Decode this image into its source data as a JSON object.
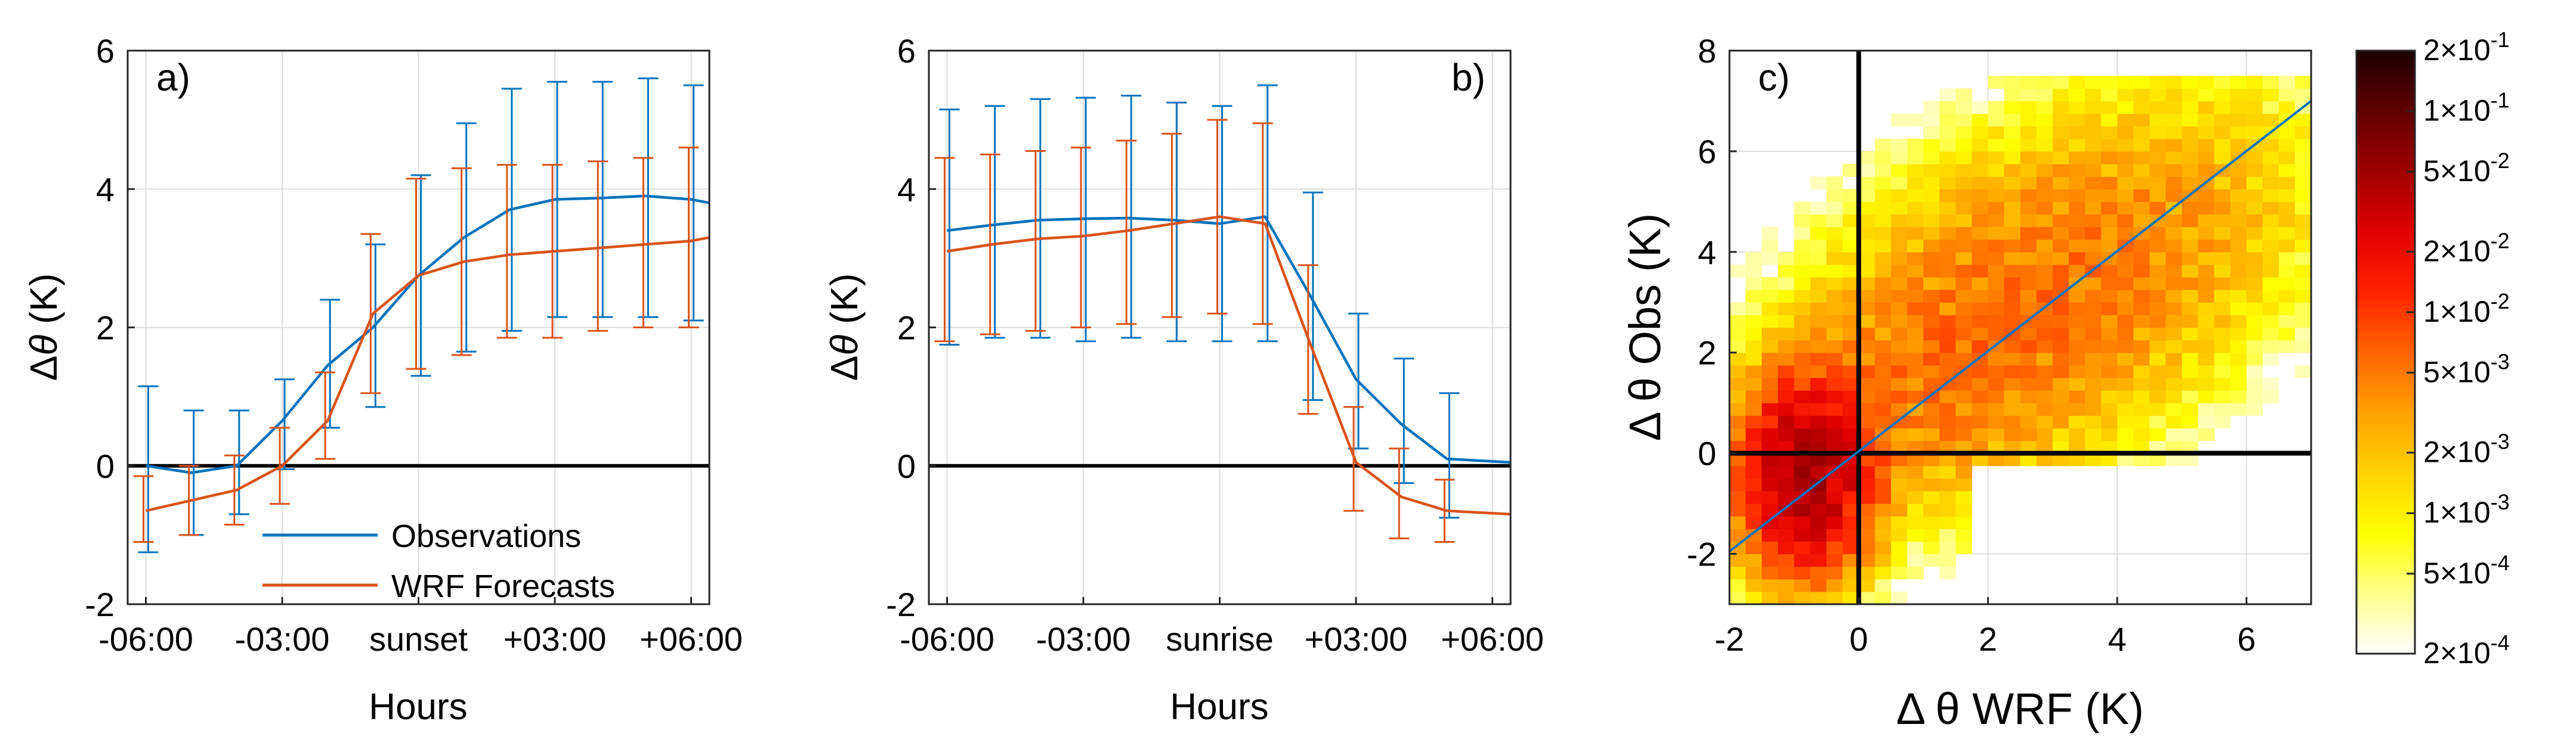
{
  "colors": {
    "observations": "#0072BD",
    "wrf": "#D95319",
    "grid": "#DCDCDC",
    "axis": "#262626",
    "zero_line": "#000000"
  },
  "chart_data": [
    {
      "id": "a",
      "type": "line",
      "panel_label": "a)",
      "xlabel": "Hours",
      "ylabel_prefix": "Δ",
      "ylabel_symbol": "θ",
      "ylabel_unit": " (K)",
      "xlim": [
        -6.4,
        6.4
      ],
      "ylim": [
        -2,
        6
      ],
      "xticks": [
        -6,
        -3,
        0,
        3,
        6
      ],
      "xtick_labels": [
        "-06:00",
        "-03:00",
        "sunset",
        "+03:00",
        "+06:00"
      ],
      "yticks": [
        -2,
        0,
        2,
        4,
        6
      ],
      "ytick_labels": [
        "-2",
        "0",
        "2",
        "4",
        "6"
      ],
      "x": [
        -6,
        -5,
        -4,
        -3,
        -2,
        -1,
        0,
        1,
        2,
        3,
        4,
        5,
        6,
        6.4
      ],
      "legend": {
        "position": "bottom-left",
        "entries": [
          "Observations",
          "WRF Forecasts"
        ]
      },
      "series": [
        {
          "name": "Observations",
          "color": "#0072BD",
          "values": [
            0.0,
            -0.1,
            0.0,
            0.65,
            1.45,
            2.0,
            2.75,
            3.3,
            3.7,
            3.85,
            3.87,
            3.9,
            3.85,
            3.8
          ],
          "error_low": [
            -1.25,
            -1.0,
            -0.7,
            -0.05,
            0.55,
            0.85,
            1.3,
            1.65,
            1.95,
            2.15,
            2.15,
            2.15,
            2.1,
            null
          ],
          "error_high": [
            1.15,
            0.8,
            0.8,
            1.25,
            2.4,
            3.2,
            4.2,
            4.95,
            5.45,
            5.55,
            5.55,
            5.6,
            5.5,
            null
          ]
        },
        {
          "name": "WRF Forecasts",
          "color": "#D95319",
          "values": [
            -0.65,
            -0.5,
            -0.35,
            0.0,
            0.65,
            2.2,
            2.75,
            2.95,
            3.05,
            3.1,
            3.15,
            3.2,
            3.25,
            3.3
          ],
          "error_low": [
            -1.1,
            -1.0,
            -0.85,
            -0.55,
            0.1,
            1.05,
            1.4,
            1.6,
            1.85,
            1.85,
            1.95,
            2.0,
            2.0,
            null
          ],
          "error_high": [
            -0.15,
            0.0,
            0.15,
            0.55,
            1.35,
            3.35,
            4.15,
            4.3,
            4.35,
            4.35,
            4.4,
            4.45,
            4.6,
            null
          ]
        }
      ]
    },
    {
      "id": "b",
      "type": "line",
      "panel_label": "b)",
      "xlabel": "Hours",
      "ylabel_prefix": "Δ",
      "ylabel_symbol": "θ",
      "ylabel_unit": " (K)",
      "xlim": [
        -6.4,
        6.4
      ],
      "ylim": [
        -2,
        6
      ],
      "xticks": [
        -6,
        -3,
        0,
        3,
        6
      ],
      "xtick_labels": [
        "-06:00",
        "-03:00",
        "sunrise",
        "+03:00",
        "+06:00"
      ],
      "yticks": [
        -2,
        0,
        2,
        4,
        6
      ],
      "ytick_labels": [
        "-2",
        "0",
        "2",
        "4",
        "6"
      ],
      "x": [
        -6,
        -5,
        -4,
        -3,
        -2,
        -1,
        0,
        1,
        2,
        3,
        4,
        5,
        6.4
      ],
      "series": [
        {
          "name": "Observations",
          "color": "#0072BD",
          "values": [
            3.4,
            3.48,
            3.55,
            3.57,
            3.58,
            3.55,
            3.5,
            3.6,
            2.45,
            1.25,
            0.6,
            0.1,
            0.05
          ],
          "error_low": [
            1.75,
            1.85,
            1.85,
            1.8,
            1.85,
            1.8,
            1.8,
            1.8,
            0.95,
            0.25,
            -0.25,
            -0.75,
            null
          ],
          "error_high": [
            5.15,
            5.2,
            5.3,
            5.32,
            5.35,
            5.25,
            5.2,
            5.5,
            3.95,
            2.2,
            1.55,
            1.05,
            null
          ]
        },
        {
          "name": "WRF Forecasts",
          "color": "#D95319",
          "values": [
            3.1,
            3.2,
            3.28,
            3.32,
            3.4,
            3.5,
            3.6,
            3.5,
            1.75,
            0.05,
            -0.45,
            -0.65,
            -0.7
          ],
          "error_low": [
            1.8,
            1.9,
            1.95,
            2.0,
            2.05,
            2.15,
            2.2,
            2.05,
            0.75,
            -0.65,
            -1.05,
            -1.1,
            null
          ],
          "error_high": [
            4.45,
            4.5,
            4.55,
            4.6,
            4.7,
            4.8,
            5.0,
            4.95,
            2.9,
            0.85,
            0.25,
            -0.2,
            null
          ]
        }
      ]
    },
    {
      "id": "c",
      "type": "heatmap",
      "panel_label": "c)",
      "xlabel": "Δ θ WRF (K)",
      "ylabel": "Δ θ Obs (K)",
      "xlim": [
        -2,
        7
      ],
      "ylim": [
        -3,
        8
      ],
      "xticks": [
        -2,
        0,
        2,
        4,
        6
      ],
      "xtick_labels": [
        "-2",
        "0",
        "2",
        "4",
        "6"
      ],
      "yticks": [
        -2,
        0,
        2,
        4,
        6,
        8
      ],
      "ytick_labels": [
        "-2",
        "0",
        "2",
        "4",
        "6",
        "8"
      ],
      "fit_line": {
        "color": "#0072BD",
        "points": [
          [
            -2,
            -1.95
          ],
          [
            7,
            7.0
          ]
        ]
      },
      "zero_lines": {
        "x": 0,
        "y": 0,
        "color": "#000000"
      },
      "bin_size": 0.25,
      "density_note": "2D histogram of ΔθObs vs ΔθWRF; densest near (-0.8, -0.5) with a broad cloud centred around (3.2, 3.5)",
      "colorbar": {
        "scale": "log",
        "range": [
          0.0002,
          0.2
        ],
        "colormap": [
          "#ffffff",
          "#ffff8c",
          "#ffff00",
          "#ffd200",
          "#ffa000",
          "#ff6400",
          "#ff2200",
          "#e00000",
          "#a00000",
          "#600000",
          "#1e0000"
        ],
        "ticks": [
          {
            "value": 0.2,
            "mantissa": "2",
            "exponent": "-1"
          },
          {
            "value": 0.1,
            "mantissa": "1",
            "exponent": "-1"
          },
          {
            "value": 0.05,
            "mantissa": "5",
            "exponent": "-2"
          },
          {
            "value": 0.02,
            "mantissa": "2",
            "exponent": "-2"
          },
          {
            "value": 0.01,
            "mantissa": "1",
            "exponent": "-2"
          },
          {
            "value": 0.005,
            "mantissa": "5",
            "exponent": "-3"
          },
          {
            "value": 0.002,
            "mantissa": "2",
            "exponent": "-3"
          },
          {
            "value": 0.001,
            "mantissa": "1",
            "exponent": "-3"
          },
          {
            "value": 0.0005,
            "mantissa": "5",
            "exponent": "-4"
          },
          {
            "value": 0.0002,
            "mantissa": "2",
            "exponent": "-4"
          }
        ],
        "tick_base": "×10"
      }
    }
  ]
}
